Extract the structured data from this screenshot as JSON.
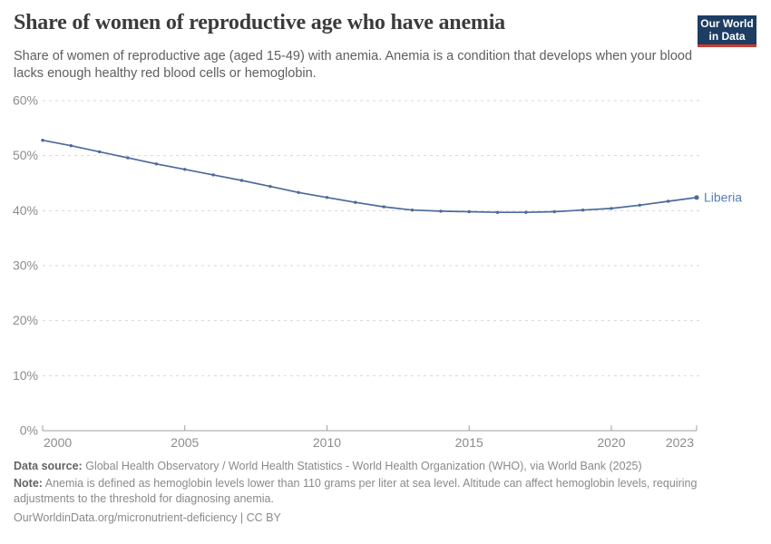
{
  "header": {
    "title": "Share of women of reproductive age who have anemia",
    "subtitle": "Share of women of reproductive age (aged 15-49) with anemia. Anemia is a condition that develops when your blood lacks enough healthy red blood cells or hemoglobin.",
    "logo": {
      "line1": "Our World",
      "line2": "in Data",
      "bg_color": "#1d3d63",
      "stripe_color": "#d0392e"
    }
  },
  "chart_data": {
    "type": "line",
    "title": "Share of women of reproductive age who have anemia",
    "entity": "Liberia",
    "x": [
      2000,
      2001,
      2002,
      2003,
      2004,
      2005,
      2006,
      2007,
      2008,
      2009,
      2010,
      2011,
      2012,
      2013,
      2014,
      2015,
      2016,
      2017,
      2018,
      2019,
      2020,
      2021,
      2022,
      2023
    ],
    "series": [
      {
        "name": "Liberia",
        "color": "#4c6a9c",
        "label_color": "#577eb5",
        "values": [
          52.8,
          51.8,
          50.7,
          49.6,
          48.5,
          47.5,
          46.5,
          45.5,
          44.4,
          43.3,
          42.4,
          41.5,
          40.7,
          40.1,
          39.9,
          39.8,
          39.7,
          39.7,
          39.8,
          40.1,
          40.4,
          41.0,
          41.7,
          42.4
        ]
      }
    ],
    "unit": "%",
    "ylim": [
      0,
      60
    ],
    "y_tick_labels": [
      "0%",
      "10%",
      "20%",
      "30%",
      "40%",
      "50%",
      "60%"
    ],
    "x_tick_labels": [
      "2000",
      "2005",
      "2010",
      "2015",
      "2020",
      "2023"
    ],
    "grid": "horizontal-dashed",
    "legend": "line-end-label",
    "grid_color": "#d7d7d7",
    "axis_color": "#a1a1a1",
    "tick_label_color": "#8c8c8c"
  },
  "footer": {
    "data_source_label": "Data source:",
    "data_source_text": "Global Health Observatory / World Health Statistics - World Health Organization (WHO), via World Bank (2025)",
    "note_label": "Note:",
    "note_text": "Anemia is defined as hemoglobin levels lower than 110 grams per liter at sea level. Altitude can affect hemoglobin levels, requiring adjustments to the threshold for diagnosing anemia.",
    "license_line": "OurWorldinData.org/micronutrient-deficiency | CC BY"
  }
}
